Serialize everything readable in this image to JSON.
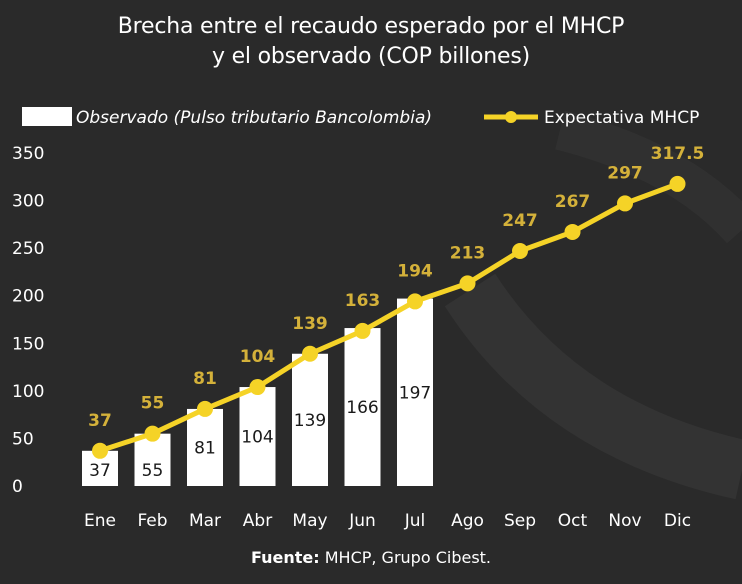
{
  "title_line1": "Brecha entre el recaudo esperado por el MHCP",
  "title_line2": "y el observado (COP billones)",
  "source_prefix": "Fuente:",
  "source_text": " MHCP, Grupo Cibest.",
  "colors": {
    "background": "#2a2a2a",
    "bars": "#ffffff",
    "line": "#f5d327",
    "line_labels": "#d4b13a",
    "bar_labels": "#1a1a1a"
  },
  "chart_data": {
    "type": "bar",
    "categories": [
      "Ene",
      "Feb",
      "Mar",
      "Abr",
      "May",
      "Jun",
      "Jul",
      "Ago",
      "Sep",
      "Oct",
      "Nov",
      "Dic"
    ],
    "series": [
      {
        "name": "Observado (Pulso tributario Bancolombia)",
        "type": "bar",
        "values": [
          37,
          55,
          81,
          104,
          139,
          166,
          197,
          null,
          null,
          null,
          null,
          null
        ],
        "labels": [
          "37",
          "55",
          "81",
          "104",
          "139",
          "166",
          "197",
          "",
          "",
          "",
          "",
          ""
        ]
      },
      {
        "name": "Expectativa MHCP",
        "type": "line",
        "values": [
          37,
          55,
          81,
          104,
          139,
          163,
          194,
          213,
          247,
          267,
          297,
          317.5
        ],
        "labels": [
          "37",
          "55",
          "81",
          "104",
          "139",
          "163",
          "194",
          "213",
          "247",
          "267",
          "297",
          "317.5"
        ]
      }
    ],
    "yticks": [
      "0",
      "50",
      "100",
      "150",
      "200",
      "250",
      "300",
      "350"
    ],
    "ylim": [
      0,
      350
    ],
    "grid": false,
    "legend": "top"
  }
}
